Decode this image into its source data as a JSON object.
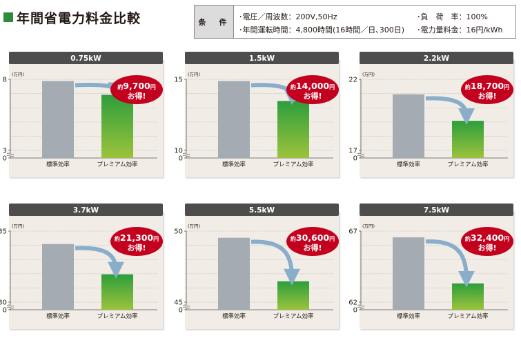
{
  "page": {
    "title": "年間省電力料金比較"
  },
  "conditions": {
    "heading": "条　件",
    "items": [
      "･電圧／周波数：200V,50Hz",
      "･年間運転時間：4,800時間(16時間／日､300日)",
      "･負　荷　率：100%",
      "･電力量料金：16円/kWh"
    ]
  },
  "colors": {
    "panel_bg": "#f1ede6",
    "header_bar": "#4d4d4d",
    "standard_bar": "#a4abb3",
    "premium_top": "#2d9e3c",
    "premium_bottom": "#9cc33c",
    "badge": "#c4001f",
    "arrow": "#8aaeca",
    "gridline": "#c9c4bb"
  },
  "chart_data": [
    {
      "type": "bar",
      "title": "0.75kW",
      "unit": "(万円)",
      "categories": [
        "標準効率",
        "プレミアム効率"
      ],
      "values": [
        7.88,
        6.91
      ],
      "ylim": [
        0,
        8
      ],
      "axis_break": true,
      "yticks": [
        "0",
        "3",
        "8"
      ],
      "saving_prefix": "約",
      "saving_value": "9,700",
      "saving_unit": "円",
      "saving_suffix": "お得!"
    },
    {
      "type": "bar",
      "title": "1.5kW",
      "unit": "(万円)",
      "categories": [
        "標準効率",
        "プレミアム効率"
      ],
      "values": [
        14.88,
        13.48
      ],
      "ylim": [
        0,
        15
      ],
      "axis_break": true,
      "yticks": [
        "0",
        "10",
        "15"
      ],
      "saving_prefix": "約",
      "saving_value": "14,000",
      "saving_unit": "円",
      "saving_suffix": "お得!"
    },
    {
      "type": "bar",
      "title": "2.2kW",
      "unit": "(万円)",
      "categories": [
        "標準効率",
        "プレミアム効率"
      ],
      "values": [
        20.95,
        19.08
      ],
      "ylim": [
        0,
        22
      ],
      "axis_break": true,
      "yticks": [
        "0",
        "17",
        "22"
      ],
      "saving_prefix": "約",
      "saving_value": "18,700",
      "saving_unit": "円",
      "saving_suffix": "お得!"
    },
    {
      "type": "bar",
      "title": "3.7kW",
      "unit": "(万円)",
      "categories": [
        "標準効率",
        "プレミアム効率"
      ],
      "values": [
        34.09,
        31.96
      ],
      "ylim": [
        0,
        35
      ],
      "axis_break": true,
      "yticks": [
        "0",
        "30",
        "35"
      ],
      "saving_prefix": "約",
      "saving_value": "21,300",
      "saving_unit": "円",
      "saving_suffix": "お得!"
    },
    {
      "type": "bar",
      "title": "5.5kW",
      "unit": "(万円)",
      "categories": [
        "標準効率",
        "プレミアム効率"
      ],
      "values": [
        49.53,
        46.47
      ],
      "ylim": [
        0,
        50
      ],
      "axis_break": true,
      "yticks": [
        "0",
        "45",
        "50"
      ],
      "saving_prefix": "約",
      "saving_value": "30,600",
      "saving_unit": "円",
      "saving_suffix": "お得!"
    },
    {
      "type": "bar",
      "title": "7.5kW",
      "unit": "(万円)",
      "categories": [
        "標準効率",
        "プレミアム効率"
      ],
      "values": [
        66.56,
        63.32
      ],
      "ylim": [
        0,
        67
      ],
      "axis_break": true,
      "yticks": [
        "0",
        "62",
        "67"
      ],
      "saving_prefix": "約",
      "saving_value": "32,400",
      "saving_unit": "円",
      "saving_suffix": "お得!"
    }
  ]
}
